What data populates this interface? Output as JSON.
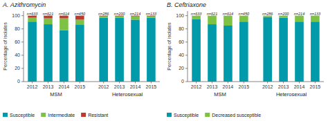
{
  "chart_data": [
    {
      "type": "bar",
      "stacked": true,
      "title": "A. Azithromycin",
      "categories": [
        "2012",
        "2013",
        "2014",
        "2015",
        "2012",
        "2013",
        "2014",
        "2015"
      ],
      "group_labels": [
        "MSM",
        "Heterosexual"
      ],
      "annotations": [
        "n=633",
        "n=621",
        "n=614",
        "n=450",
        "n=286",
        "n=200",
        "n=214",
        "n=133"
      ],
      "y_label": "Percentage of isolates",
      "series": [
        {
          "name": "Susceptible",
          "color": "#009aaa",
          "values": [
            91,
            87,
            78,
            86,
            97,
            97,
            94,
            97
          ]
        },
        {
          "name": "Intermediate",
          "color": "#7dc243",
          "values": [
            6,
            9,
            18,
            8,
            2,
            2,
            5,
            2
          ]
        },
        {
          "name": "Resistant",
          "color": "#c0392b",
          "values": [
            3,
            4,
            4,
            6,
            1,
            1,
            1,
            1
          ]
        }
      ],
      "ylim": [
        0,
        107
      ],
      "yticks": [
        0,
        20,
        40,
        60,
        80,
        100
      ],
      "legend": "bottom"
    },
    {
      "type": "bar",
      "stacked": true,
      "title": "B. Ceftriaxone",
      "categories": [
        "2012",
        "2013",
        "2014",
        "2015",
        "2012",
        "2013",
        "2014",
        "2015"
      ],
      "group_labels": [
        "MSM",
        "Heterosexual"
      ],
      "annotations": [
        "n=633",
        "n=621",
        "n=614",
        "n=450",
        "n=286",
        "n=200",
        "n=214",
        "n=133"
      ],
      "y_label": "Percentage of isolates",
      "series": [
        {
          "name": "Susceptible",
          "color": "#009aaa",
          "values": [
            95,
            87,
            85,
            91,
            98,
            97,
            91,
            91
          ]
        },
        {
          "name": "Decreased susceptible",
          "color": "#7dc243",
          "values": [
            5,
            13,
            15,
            9,
            2,
            3,
            9,
            9
          ]
        }
      ],
      "ylim": [
        0,
        107
      ],
      "yticks": [
        0,
        20,
        40,
        60,
        80,
        100
      ],
      "legend": "bottom"
    }
  ]
}
